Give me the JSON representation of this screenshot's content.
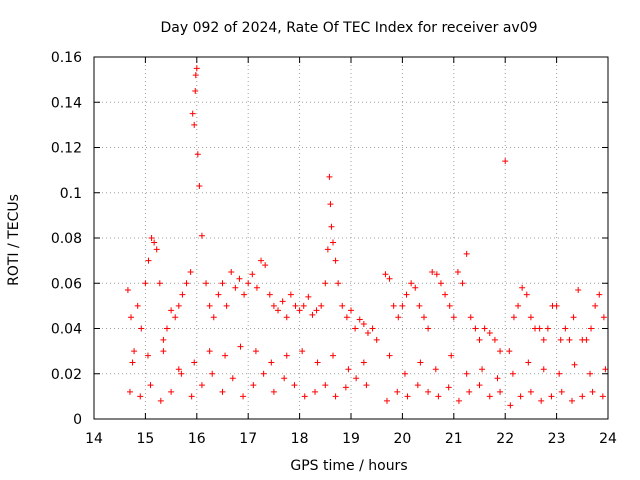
{
  "chart_data": {
    "type": "scatter",
    "title": "Day 092 of 2024, Rate Of TEC Index for receiver av09",
    "xlabel": "GPS time / hours",
    "ylabel": "ROTI / TECUs",
    "xlim": [
      14,
      24
    ],
    "ylim": [
      0,
      0.16
    ],
    "xticks": [
      14,
      15,
      16,
      17,
      18,
      19,
      20,
      21,
      22,
      23,
      24
    ],
    "yticks": [
      0,
      0.02,
      0.04,
      0.06,
      0.08,
      0.1,
      0.12,
      0.14,
      0.16
    ],
    "xtick_labels": [
      "14",
      "15",
      "16",
      "17",
      "18",
      "19",
      "20",
      "21",
      "22",
      "23",
      "24"
    ],
    "ytick_labels": [
      "0",
      "0.02",
      "0.04",
      "0.06",
      "0.08",
      "0.1",
      "0.12",
      "0.14",
      "0.16"
    ],
    "grid": true,
    "marker": "+",
    "color": "#ff0000",
    "series": [
      {
        "name": "av09",
        "x": [
          14.66,
          14.72,
          14.78,
          14.85,
          14.92,
          15.0,
          15.06,
          15.12,
          15.17,
          15.22,
          15.28,
          15.35,
          15.42,
          15.5,
          15.58,
          15.65,
          15.72,
          15.8,
          15.88,
          15.92,
          15.95,
          15.97,
          15.98,
          16.0,
          16.02,
          16.05,
          16.1,
          16.18,
          16.25,
          16.33,
          16.42,
          16.5,
          16.58,
          16.67,
          16.75,
          16.83,
          16.92,
          17.0,
          17.08,
          17.17,
          17.25,
          17.33,
          17.42,
          17.5,
          17.58,
          17.67,
          17.75,
          17.83,
          17.92,
          18.0,
          18.08,
          18.17,
          18.25,
          18.33,
          18.42,
          18.5,
          18.55,
          18.58,
          18.6,
          18.62,
          18.65,
          18.7,
          18.75,
          18.83,
          18.92,
          19.0,
          19.08,
          19.17,
          19.25,
          19.33,
          19.42,
          19.5,
          19.67,
          19.75,
          19.83,
          19.92,
          20.0,
          20.08,
          20.17,
          20.25,
          20.33,
          20.42,
          20.5,
          20.58,
          20.67,
          20.75,
          20.83,
          20.92,
          21.0,
          21.08,
          21.17,
          21.25,
          21.33,
          21.42,
          21.5,
          21.6,
          21.7,
          21.8,
          21.9,
          22.0,
          22.08,
          22.17,
          22.25,
          22.33,
          22.42,
          22.5,
          22.58,
          22.67,
          22.75,
          22.83,
          22.92,
          23.0,
          23.08,
          23.17,
          23.25,
          23.33,
          23.42,
          23.5,
          23.58,
          23.67,
          23.75,
          23.83,
          23.92,
          14.7,
          14.9,
          15.1,
          15.3,
          15.5,
          15.7,
          15.9,
          16.1,
          16.3,
          16.5,
          16.7,
          16.9,
          17.1,
          17.3,
          17.5,
          17.7,
          17.9,
          18.1,
          18.3,
          18.5,
          18.7,
          18.9,
          19.1,
          19.3,
          19.7,
          19.9,
          20.1,
          20.3,
          20.5,
          20.7,
          20.9,
          21.1,
          21.3,
          21.5,
          21.7,
          21.9,
          22.1,
          22.3,
          22.5,
          22.7,
          22.9,
          23.1,
          23.3,
          23.5,
          23.7,
          23.9,
          14.75,
          15.05,
          15.35,
          15.65,
          15.95,
          16.25,
          16.55,
          16.85,
          17.15,
          17.45,
          17.75,
          18.05,
          18.35,
          18.65,
          18.95,
          19.25,
          19.75,
          20.05,
          20.35,
          20.65,
          20.95,
          21.25,
          21.55,
          21.85,
          22.15,
          22.45,
          22.75,
          23.05,
          23.35,
          23.65,
          23.95
        ],
        "y": [
          0.057,
          0.045,
          0.03,
          0.05,
          0.04,
          0.06,
          0.07,
          0.08,
          0.078,
          0.075,
          0.06,
          0.035,
          0.04,
          0.048,
          0.045,
          0.05,
          0.055,
          0.06,
          0.065,
          0.135,
          0.13,
          0.145,
          0.152,
          0.155,
          0.117,
          0.103,
          0.081,
          0.06,
          0.05,
          0.045,
          0.055,
          0.06,
          0.05,
          0.065,
          0.058,
          0.062,
          0.055,
          0.06,
          0.064,
          0.058,
          0.07,
          0.068,
          0.055,
          0.05,
          0.048,
          0.052,
          0.045,
          0.055,
          0.05,
          0.048,
          0.05,
          0.054,
          0.046,
          0.048,
          0.05,
          0.06,
          0.075,
          0.107,
          0.095,
          0.085,
          0.078,
          0.07,
          0.06,
          0.05,
          0.045,
          0.048,
          0.04,
          0.044,
          0.042,
          0.038,
          0.04,
          0.035,
          0.064,
          0.062,
          0.05,
          0.045,
          0.05,
          0.055,
          0.06,
          0.058,
          0.05,
          0.045,
          0.04,
          0.065,
          0.064,
          0.06,
          0.055,
          0.05,
          0.045,
          0.065,
          0.06,
          0.073,
          0.045,
          0.04,
          0.035,
          0.04,
          0.038,
          0.035,
          0.03,
          0.114,
          0.03,
          0.045,
          0.05,
          0.058,
          0.055,
          0.045,
          0.04,
          0.04,
          0.035,
          0.04,
          0.05,
          0.05,
          0.035,
          0.04,
          0.035,
          0.045,
          0.057,
          0.035,
          0.035,
          0.04,
          0.05,
          0.055,
          0.045,
          0.012,
          0.01,
          0.015,
          0.008,
          0.012,
          0.02,
          0.01,
          0.015,
          0.02,
          0.012,
          0.018,
          0.01,
          0.015,
          0.02,
          0.012,
          0.018,
          0.015,
          0.01,
          0.012,
          0.015,
          0.01,
          0.014,
          0.018,
          0.015,
          0.008,
          0.012,
          0.01,
          0.015,
          0.012,
          0.01,
          0.014,
          0.008,
          0.012,
          0.015,
          0.01,
          0.012,
          0.006,
          0.01,
          0.012,
          0.008,
          0.01,
          0.012,
          0.008,
          0.01,
          0.012,
          0.01,
          0.025,
          0.028,
          0.03,
          0.022,
          0.025,
          0.03,
          0.028,
          0.032,
          0.03,
          0.025,
          0.028,
          0.03,
          0.025,
          0.028,
          0.022,
          0.025,
          0.028,
          0.02,
          0.025,
          0.022,
          0.028,
          0.02,
          0.022,
          0.018,
          0.02,
          0.025,
          0.022,
          0.02,
          0.024,
          0.02,
          0.022
        ]
      }
    ]
  }
}
